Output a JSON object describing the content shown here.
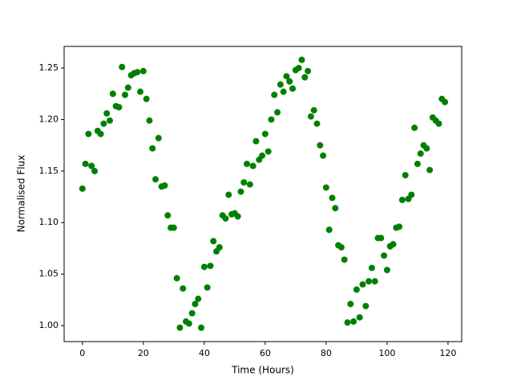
{
  "chart_data": {
    "type": "scatter",
    "x_label": "Time (Hours)",
    "y_label": "Normalised Flux",
    "color": "#008000",
    "x": [
      0,
      1,
      2,
      3,
      4,
      5,
      6,
      7,
      8,
      9,
      10,
      11,
      12,
      13,
      14,
      15,
      16,
      17,
      18,
      19,
      20,
      21,
      22,
      23,
      24,
      25,
      26,
      27,
      28,
      29,
      30,
      31,
      32,
      33,
      34,
      35,
      36,
      37,
      38,
      39,
      40,
      41,
      42,
      43,
      44,
      45,
      46,
      47,
      48,
      49,
      50,
      51,
      52,
      53,
      54,
      55,
      56,
      57,
      58,
      59,
      60,
      61,
      62,
      63,
      64,
      65,
      66,
      67,
      68,
      69,
      70,
      71,
      72,
      73,
      74,
      75,
      76,
      77,
      78,
      79,
      80,
      81,
      82,
      83,
      84,
      85,
      86,
      87,
      88,
      89,
      90,
      91,
      92,
      93,
      94,
      95,
      96,
      97,
      98,
      99,
      100,
      101,
      102,
      103,
      104,
      105,
      106,
      107,
      108,
      109,
      110,
      111,
      112,
      113,
      114,
      115,
      116,
      117,
      118,
      119
    ],
    "values": [
      1.133,
      1.157,
      1.186,
      1.155,
      1.15,
      1.189,
      1.186,
      1.196,
      1.206,
      1.199,
      1.225,
      1.213,
      1.212,
      1.251,
      1.224,
      1.231,
      1.243,
      1.245,
      1.246,
      1.227,
      1.247,
      1.22,
      1.199,
      1.172,
      1.142,
      1.182,
      1.135,
      1.136,
      1.107,
      1.095,
      1.095,
      1.046,
      0.998,
      1.036,
      1.004,
      1.002,
      1.012,
      1.021,
      1.026,
      0.998,
      1.057,
      1.037,
      1.058,
      1.082,
      1.072,
      1.076,
      1.107,
      1.104,
      1.127,
      1.108,
      1.109,
      1.106,
      1.13,
      1.139,
      1.157,
      1.137,
      1.155,
      1.179,
      1.161,
      1.165,
      1.186,
      1.169,
      1.2,
      1.224,
      1.207,
      1.234,
      1.227,
      1.242,
      1.237,
      1.23,
      1.248,
      1.25,
      1.258,
      1.241,
      1.247,
      1.203,
      1.209,
      1.196,
      1.175,
      1.165,
      1.134,
      1.093,
      1.124,
      1.114,
      1.078,
      1.076,
      1.064,
      1.003,
      1.021,
      1.004,
      1.035,
      1.008,
      1.04,
      1.019,
      1.043,
      1.056,
      1.043,
      1.085,
      1.085,
      1.068,
      1.054,
      1.077,
      1.079,
      1.095,
      1.096,
      1.122,
      1.146,
      1.123,
      1.127,
      1.192,
      1.157,
      1.167,
      1.175,
      1.172,
      1.151,
      1.202,
      1.199,
      1.196,
      1.22,
      1.217
    ],
    "xlim": [
      -6,
      124.5
    ],
    "ylim": [
      0.9845,
      1.271
    ],
    "xticks": [
      0,
      20,
      40,
      60,
      80,
      100,
      120
    ],
    "yticks": [
      {
        "value": 1,
        "label": "1.00"
      },
      1.05,
      {
        "value": 1.1,
        "label": "1.10"
      },
      1.15,
      {
        "value": 1.2,
        "label": "1.20"
      },
      1.25
    ]
  }
}
